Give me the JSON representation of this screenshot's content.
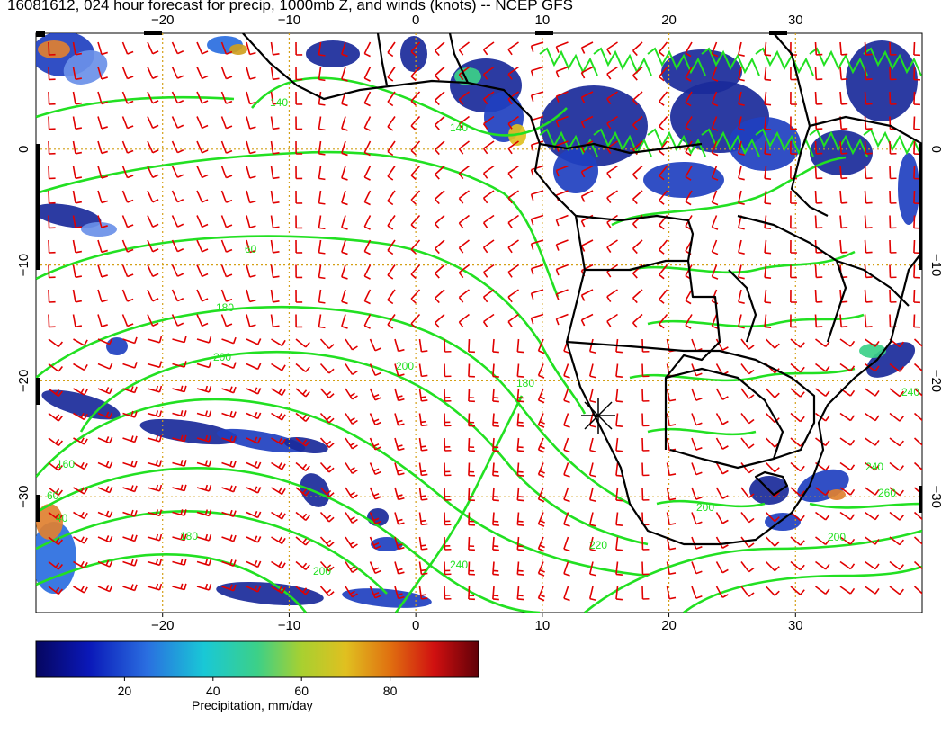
{
  "title": "16081612, 024 hour forecast for precip, 1000mb Z, and winds (knots) -- NCEP GFS",
  "map": {
    "lon_range": [
      -30,
      40
    ],
    "lat_range": [
      -40,
      10
    ],
    "lon_ticks": [
      "−20",
      "−10",
      "0",
      "10",
      "20",
      "30"
    ],
    "lat_ticks": [
      "0",
      "−10",
      "−20",
      "−30"
    ],
    "gridlines": true,
    "colors": {
      "gridline": "#d4a017",
      "coastline": "#000000",
      "contour": "#22e022",
      "wind_barb": "#e00000",
      "precip_low": "#1a2a9a"
    },
    "contour_labels": [
      "140",
      "60",
      "180",
      "200",
      "200",
      "180",
      "160",
      "60",
      "40",
      "200",
      "180",
      "240",
      "200",
      "220",
      "200",
      "240",
      "260",
      "240",
      "140"
    ],
    "marker": "storm-symbol"
  },
  "colorbar": {
    "ticks": [
      "20",
      "40",
      "60",
      "80"
    ],
    "range": [
      0,
      100
    ],
    "label": "Precipitation, mm/day"
  }
}
